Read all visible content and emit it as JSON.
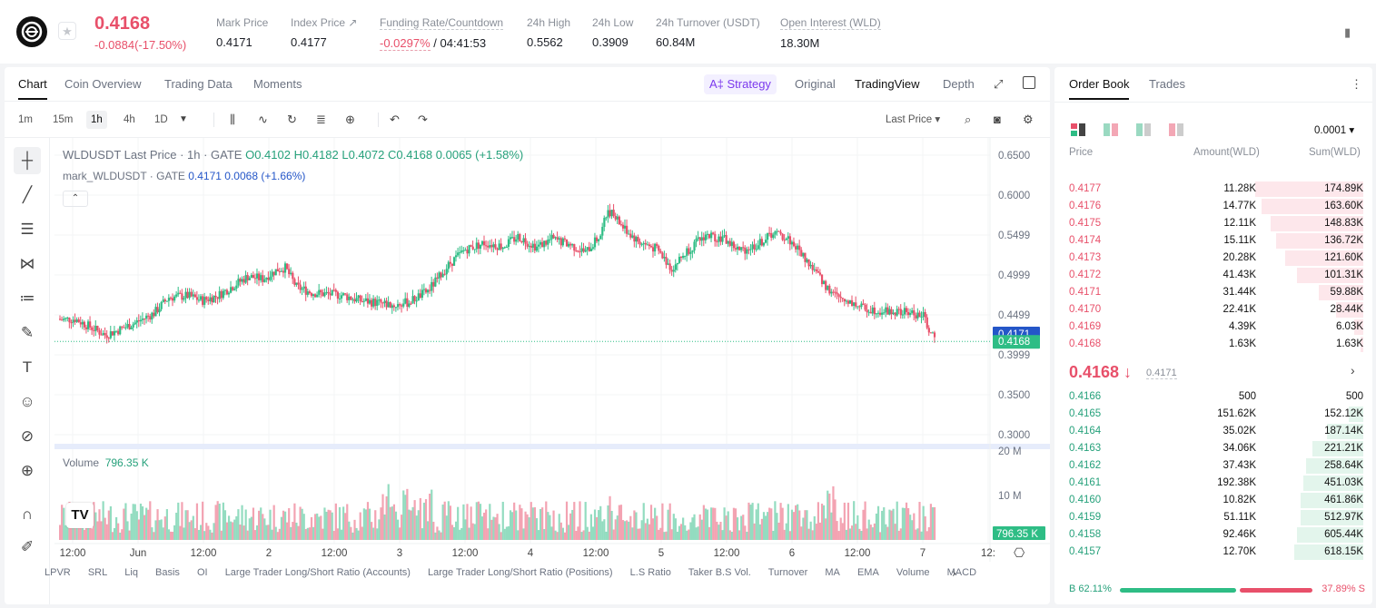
{
  "header": {
    "last_price": "0.4168",
    "change": "-0.0884(-17.50%)",
    "stats": [
      {
        "label": "Mark Price",
        "value": "0.4171"
      },
      {
        "label": "Index Price ↗",
        "value": "0.4177"
      },
      {
        "label": "Funding Rate/Countdown",
        "value_red": "-0.0297%",
        "value": "/ 04:41:53"
      },
      {
        "label": "24h High",
        "value": "0.5562"
      },
      {
        "label": "24h Low",
        "value": "0.3909"
      },
      {
        "label": "24h Turnover (USDT)",
        "value": "60.84M"
      },
      {
        "label": "Open Interest (WLD)",
        "value": "18.30M"
      }
    ]
  },
  "chart_tabs": [
    "Chart",
    "Coin Overview",
    "Trading Data",
    "Moments"
  ],
  "view_tabs": {
    "strategy": "A‡ Strategy",
    "original": "Original",
    "tradingview": "TradingView",
    "depth": "Depth"
  },
  "intervals": [
    "1m",
    "15m",
    "1h",
    "4h",
    "1D"
  ],
  "price_type": "Last Price ▾",
  "legend": {
    "symbol": "WLDUSDT Last Price · 1h · GATE",
    "o": "O0.4102",
    "h": "H0.4182",
    "l": "L0.4072",
    "c": "C0.4168",
    "chg": "0.0065 (+1.58%)",
    "mark": "mark_WLDUSDT · GATE",
    "mark_val": "0.4171",
    "mark_chg": "0.0068 (+1.66%)"
  },
  "volume_legend": {
    "label": "Volume",
    "value": "796.35 K"
  },
  "price_axis": [
    "0.6500",
    "0.6000",
    "0.5499",
    "0.4999",
    "0.4499",
    "0.3999",
    "0.3500",
    "0.3000"
  ],
  "price_tags": {
    "mark": "0.4171",
    "last": "0.4168",
    "vol": "796.35 K"
  },
  "vol_axis": [
    "20 M",
    "10 M"
  ],
  "time_axis": [
    "12:00",
    "Jun",
    "12:00",
    "2",
    "12:00",
    "3",
    "12:00",
    "4",
    "12:00",
    "5",
    "12:00",
    "6",
    "12:00",
    "7",
    "12:"
  ],
  "indicators": [
    "LPVR",
    "SRL",
    "Liq",
    "Basis",
    "OI",
    "Large Trader Long/Short Ratio (Accounts)",
    "Large Trader Long/Short Ratio (Positions)",
    "L.S Ratio",
    "Taker B.S Vol.",
    "Turnover",
    "MA",
    "EMA",
    "Volume",
    "MACD"
  ],
  "colors": {
    "up": "#2ebd85",
    "down": "#e8506a",
    "mark_blue": "#2456c8"
  },
  "orderbook": {
    "tabs": [
      "Order Book",
      "Trades"
    ],
    "precision": "0.0001 ▾",
    "columns": {
      "price": "Price",
      "amount": "Amount(WLD)",
      "sum": "Sum(WLD)"
    },
    "asks": [
      {
        "price": "0.4177",
        "amount": "11.28K",
        "sum": "174.89K",
        "depth": 0.36
      },
      {
        "price": "0.4176",
        "amount": "14.77K",
        "sum": "163.60K",
        "depth": 0.34
      },
      {
        "price": "0.4175",
        "amount": "12.11K",
        "sum": "148.83K",
        "depth": 0.31
      },
      {
        "price": "0.4174",
        "amount": "15.11K",
        "sum": "136.72K",
        "depth": 0.29
      },
      {
        "price": "0.4173",
        "amount": "20.28K",
        "sum": "121.60K",
        "depth": 0.26
      },
      {
        "price": "0.4172",
        "amount": "41.43K",
        "sum": "101.31K",
        "depth": 0.22
      },
      {
        "price": "0.4171",
        "amount": "31.44K",
        "sum": "59.88K",
        "depth": 0.15
      },
      {
        "price": "0.4170",
        "amount": "22.41K",
        "sum": "28.44K",
        "depth": 0.09
      },
      {
        "price": "0.4169",
        "amount": "4.39K",
        "sum": "6.03K",
        "depth": 0.03
      },
      {
        "price": "0.4168",
        "amount": "1.63K",
        "sum": "1.63K",
        "depth": 0.01
      }
    ],
    "mid": {
      "price": "0.4168 ↓",
      "mark": "0.4171"
    },
    "bids": [
      {
        "price": "0.4166",
        "amount": "500",
        "sum": "500",
        "depth": 0.0
      },
      {
        "price": "0.4165",
        "amount": "151.62K",
        "sum": "152.12K",
        "depth": 0.05
      },
      {
        "price": "0.4164",
        "amount": "35.02K",
        "sum": "187.14K",
        "depth": 0.12
      },
      {
        "price": "0.4163",
        "amount": "34.06K",
        "sum": "221.21K",
        "depth": 0.17
      },
      {
        "price": "0.4162",
        "amount": "37.43K",
        "sum": "258.64K",
        "depth": 0.19
      },
      {
        "price": "0.4161",
        "amount": "192.38K",
        "sum": "451.03K",
        "depth": 0.2
      },
      {
        "price": "0.4160",
        "amount": "10.82K",
        "sum": "461.86K",
        "depth": 0.21
      },
      {
        "price": "0.4159",
        "amount": "51.11K",
        "sum": "512.97K",
        "depth": 0.21
      },
      {
        "price": "0.4158",
        "amount": "92.46K",
        "sum": "605.44K",
        "depth": 0.22
      },
      {
        "price": "0.4157",
        "amount": "12.70K",
        "sum": "618.15K",
        "depth": 0.23
      }
    ],
    "ratio": {
      "buy": "B 62.11%",
      "sell": "37.89% S"
    }
  }
}
